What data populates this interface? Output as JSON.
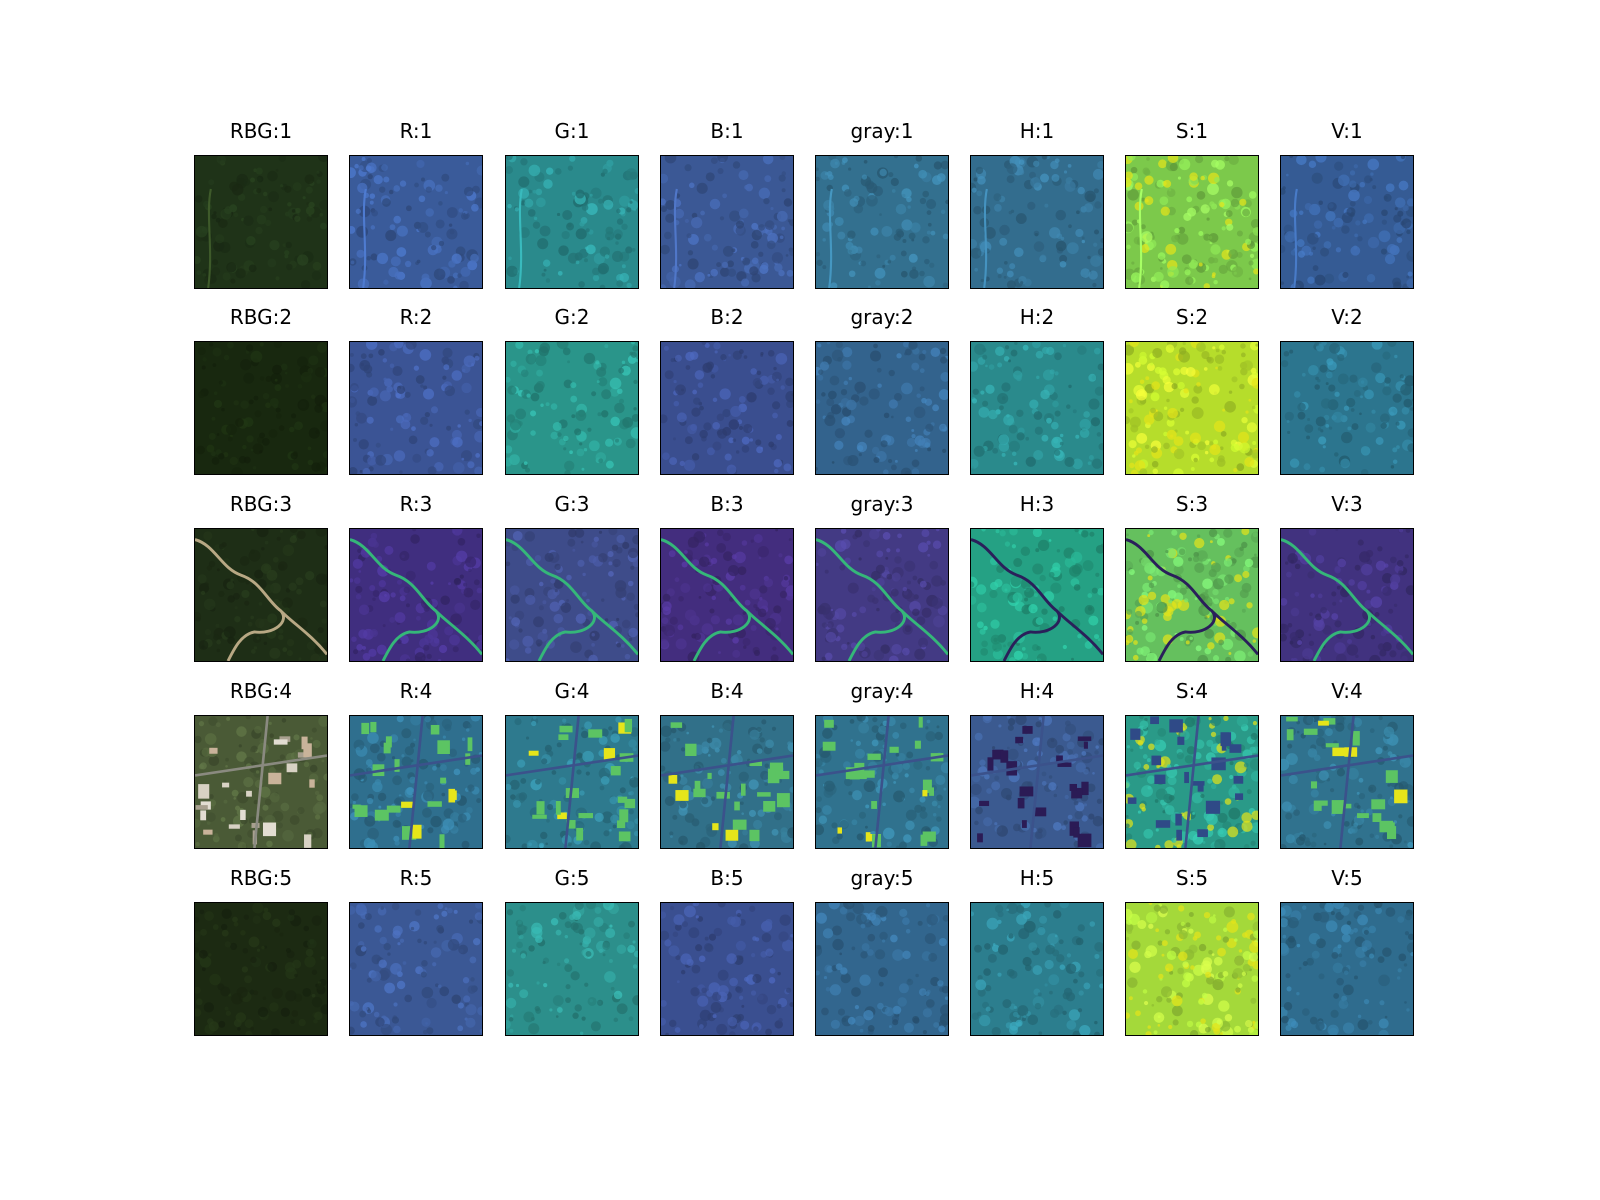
{
  "figure": {
    "columns": [
      "RBG",
      "R",
      "G",
      "B",
      "gray",
      "H",
      "S",
      "V"
    ],
    "rows": [
      {
        "index": 1,
        "titles": [
          "RBG:1",
          "R:1",
          "G:1",
          "B:1",
          "gray:1",
          "H:1",
          "S:1",
          "V:1"
        ],
        "scene": "dense forest with a thin road on the left edge and a small clearing top-right",
        "colors": [
          "#1f3318",
          "#3a5b9a",
          "#2a8a8c",
          "#3b5895",
          "#33708f",
          "#336d8e",
          "#7cc94b",
          "#355b94"
        ]
      },
      {
        "index": 2,
        "titles": [
          "RBG:2",
          "R:2",
          "G:2",
          "B:2",
          "gray:2",
          "H:2",
          "S:2",
          "V:2"
        ],
        "scene": "uniform dense forest canopy",
        "colors": [
          "#18280f",
          "#3b5495",
          "#2a958a",
          "#3a4e8f",
          "#33638d",
          "#2a8a8c",
          "#b6dd2b",
          "#2c758e"
        ]
      },
      {
        "index": 3,
        "titles": [
          "RBG:3",
          "R:3",
          "G:3",
          "B:3",
          "gray:3",
          "H:3",
          "S:3",
          "V:3"
        ],
        "scene": "forest crossed by a winding light-colored river/road",
        "colors": [
          "#1e2e16",
          "#402e7f",
          "#3e4c8a",
          "#432d7e",
          "#433a84",
          "#25a184",
          "#65c05e",
          "#41327f"
        ]
      },
      {
        "index": 4,
        "titles": [
          "RBG:4",
          "R:4",
          "G:4",
          "B:4",
          "gray:4",
          "H:4",
          "S:4",
          "V:4"
        ],
        "scene": "urban area with buildings, roads and vegetation",
        "colors": [
          "#4a5a36",
          "#2f6f8e",
          "#2e7a8e",
          "#317089",
          "#30728e",
          "#3b5a90",
          "#2a9a88",
          "#30728e"
        ]
      },
      {
        "index": 5,
        "titles": [
          "RBG:5",
          "R:5",
          "G:5",
          "B:5",
          "gray:5",
          "H:5",
          "S:5",
          "V:5"
        ],
        "scene": "textured forest canopy with darker shadowed patches",
        "colors": [
          "#1c2a12",
          "#3b5895",
          "#2c8f8b",
          "#3a4f90",
          "#32668e",
          "#2c7e8e",
          "#a4d93a",
          "#2f6c8e"
        ]
      }
    ]
  }
}
